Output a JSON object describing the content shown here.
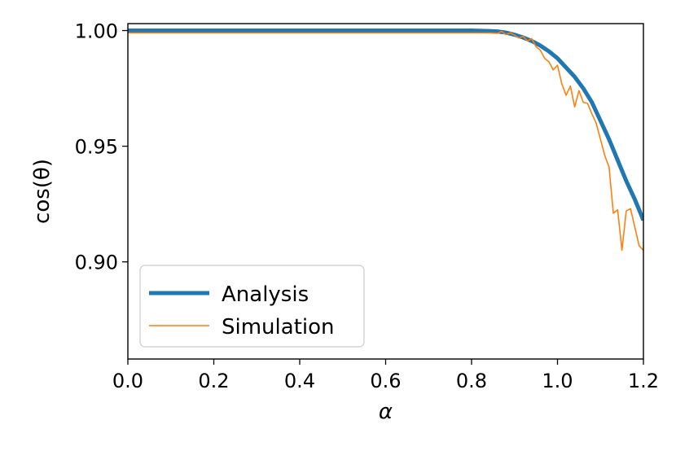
{
  "chart_data": {
    "type": "line",
    "title": "",
    "xlabel": "α",
    "ylabel": "cos(θ)",
    "xlim": [
      0.0,
      1.2
    ],
    "ylim": [
      0.858,
      1.003
    ],
    "xticks": [
      0.0,
      0.2,
      0.4,
      0.6,
      0.8,
      1.0,
      1.2
    ],
    "xtick_labels": [
      "0.0",
      "0.2",
      "0.4",
      "0.6",
      "0.8",
      "1.0",
      "1.2"
    ],
    "yticks": [
      0.9,
      0.95,
      1.0
    ],
    "ytick_labels": [
      "0.90",
      "0.95",
      "1.00"
    ],
    "grid": false,
    "legend_position": "lower-left",
    "series": [
      {
        "name": "Analysis",
        "color": "#1f77b4",
        "style": "thick",
        "x": [
          0.0,
          0.2,
          0.4,
          0.6,
          0.8,
          0.84,
          0.86,
          0.88,
          0.9,
          0.92,
          0.94,
          0.96,
          0.98,
          1.0,
          1.02,
          1.04,
          1.06,
          1.08,
          1.1,
          1.12,
          1.14,
          1.16,
          1.18,
          1.2
        ],
        "y": [
          1.0,
          1.0,
          1.0,
          1.0,
          1.0,
          0.9998,
          0.9996,
          0.9991,
          0.9982,
          0.997,
          0.9955,
          0.9935,
          0.991,
          0.988,
          0.984,
          0.98,
          0.975,
          0.969,
          0.961,
          0.953,
          0.944,
          0.935,
          0.927,
          0.918
        ]
      },
      {
        "name": "Simulation",
        "color": "#ff7f0e",
        "style": "thin",
        "x": [
          0.0,
          0.2,
          0.4,
          0.6,
          0.8,
          0.84,
          0.86,
          0.87,
          0.88,
          0.89,
          0.9,
          0.91,
          0.92,
          0.93,
          0.94,
          0.95,
          0.96,
          0.97,
          0.98,
          0.99,
          1.0,
          1.01,
          1.02,
          1.03,
          1.04,
          1.05,
          1.06,
          1.07,
          1.08,
          1.09,
          1.1,
          1.11,
          1.12,
          1.13,
          1.14,
          1.15,
          1.16,
          1.17,
          1.18,
          1.19,
          1.2
        ],
        "y": [
          0.999,
          0.999,
          0.999,
          0.999,
          0.999,
          0.999,
          0.9988,
          0.9996,
          0.9982,
          0.999,
          0.998,
          0.9968,
          0.9975,
          0.9955,
          0.9965,
          0.993,
          0.9915,
          0.988,
          0.9865,
          0.983,
          0.985,
          0.977,
          0.972,
          0.976,
          0.967,
          0.974,
          0.969,
          0.9685,
          0.964,
          0.96,
          0.953,
          0.946,
          0.941,
          0.921,
          0.9225,
          0.905,
          0.922,
          0.923,
          0.915,
          0.907,
          0.905
        ]
      }
    ]
  }
}
